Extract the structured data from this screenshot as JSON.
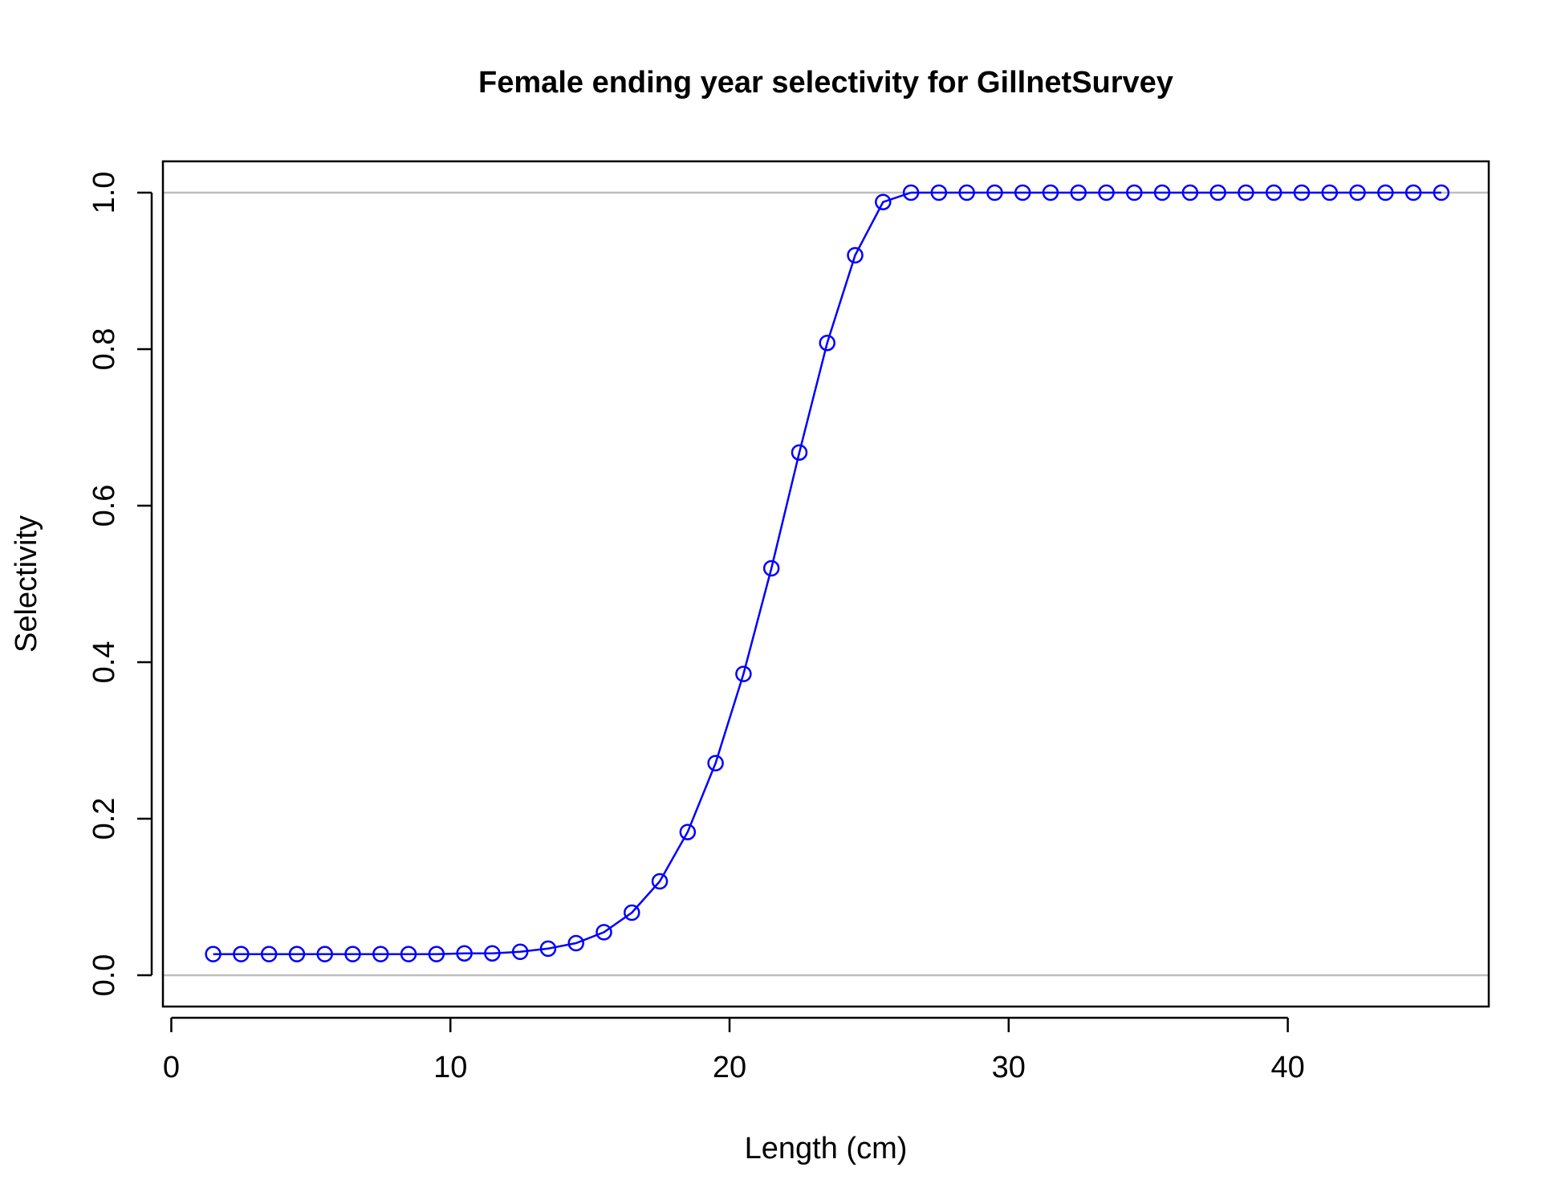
{
  "chart_data": {
    "type": "line",
    "title": "Female ending year selectivity for GillnetSurvey",
    "xlabel": "Length (cm)",
    "ylabel": "Selectivity",
    "xlim": [
      -0.3,
      47.2
    ],
    "ylim": [
      -0.04,
      1.04
    ],
    "xticks": [
      0,
      10,
      20,
      30,
      40
    ],
    "yticks": [
      0.0,
      0.2,
      0.4,
      0.6,
      0.8,
      1.0
    ],
    "xtick_labels": [
      "0",
      "10",
      "20",
      "30",
      "40"
    ],
    "ytick_labels": [
      "0.0",
      "0.2",
      "0.4",
      "0.6",
      "0.8",
      "1.0"
    ],
    "reference_lines_y": [
      0,
      1
    ],
    "grid": false,
    "series": [
      {
        "color": "#0000ff",
        "marker": "open-circle",
        "x": [
          1.5,
          2.5,
          3.5,
          4.5,
          5.5,
          6.5,
          7.5,
          8.5,
          9.5,
          10.5,
          11.5,
          12.5,
          13.5,
          14.5,
          15.5,
          16.5,
          17.5,
          18.5,
          19.5,
          20.5,
          21.5,
          22.5,
          23.5,
          24.5,
          25.5,
          26.5,
          27.5,
          28.5,
          29.5,
          30.5,
          31.5,
          32.5,
          33.5,
          34.5,
          35.5,
          36.5,
          37.5,
          38.5,
          39.5,
          40.5,
          41.5,
          42.5,
          43.5,
          44.5,
          45.5
        ],
        "y": [
          0.027,
          0.027,
          0.027,
          0.027,
          0.027,
          0.027,
          0.027,
          0.027,
          0.027,
          0.028,
          0.028,
          0.03,
          0.034,
          0.041,
          0.055,
          0.08,
          0.12,
          0.183,
          0.271,
          0.385,
          0.52,
          0.668,
          0.808,
          0.92,
          0.988,
          1.0,
          1.0,
          1.0,
          1.0,
          1.0,
          1.0,
          1.0,
          1.0,
          1.0,
          1.0,
          1.0,
          1.0,
          1.0,
          1.0,
          1.0,
          1.0,
          1.0,
          1.0,
          1.0,
          1.0
        ]
      }
    ],
    "colors": {
      "reference_line": "#bebebe",
      "axis": "#000000"
    }
  }
}
